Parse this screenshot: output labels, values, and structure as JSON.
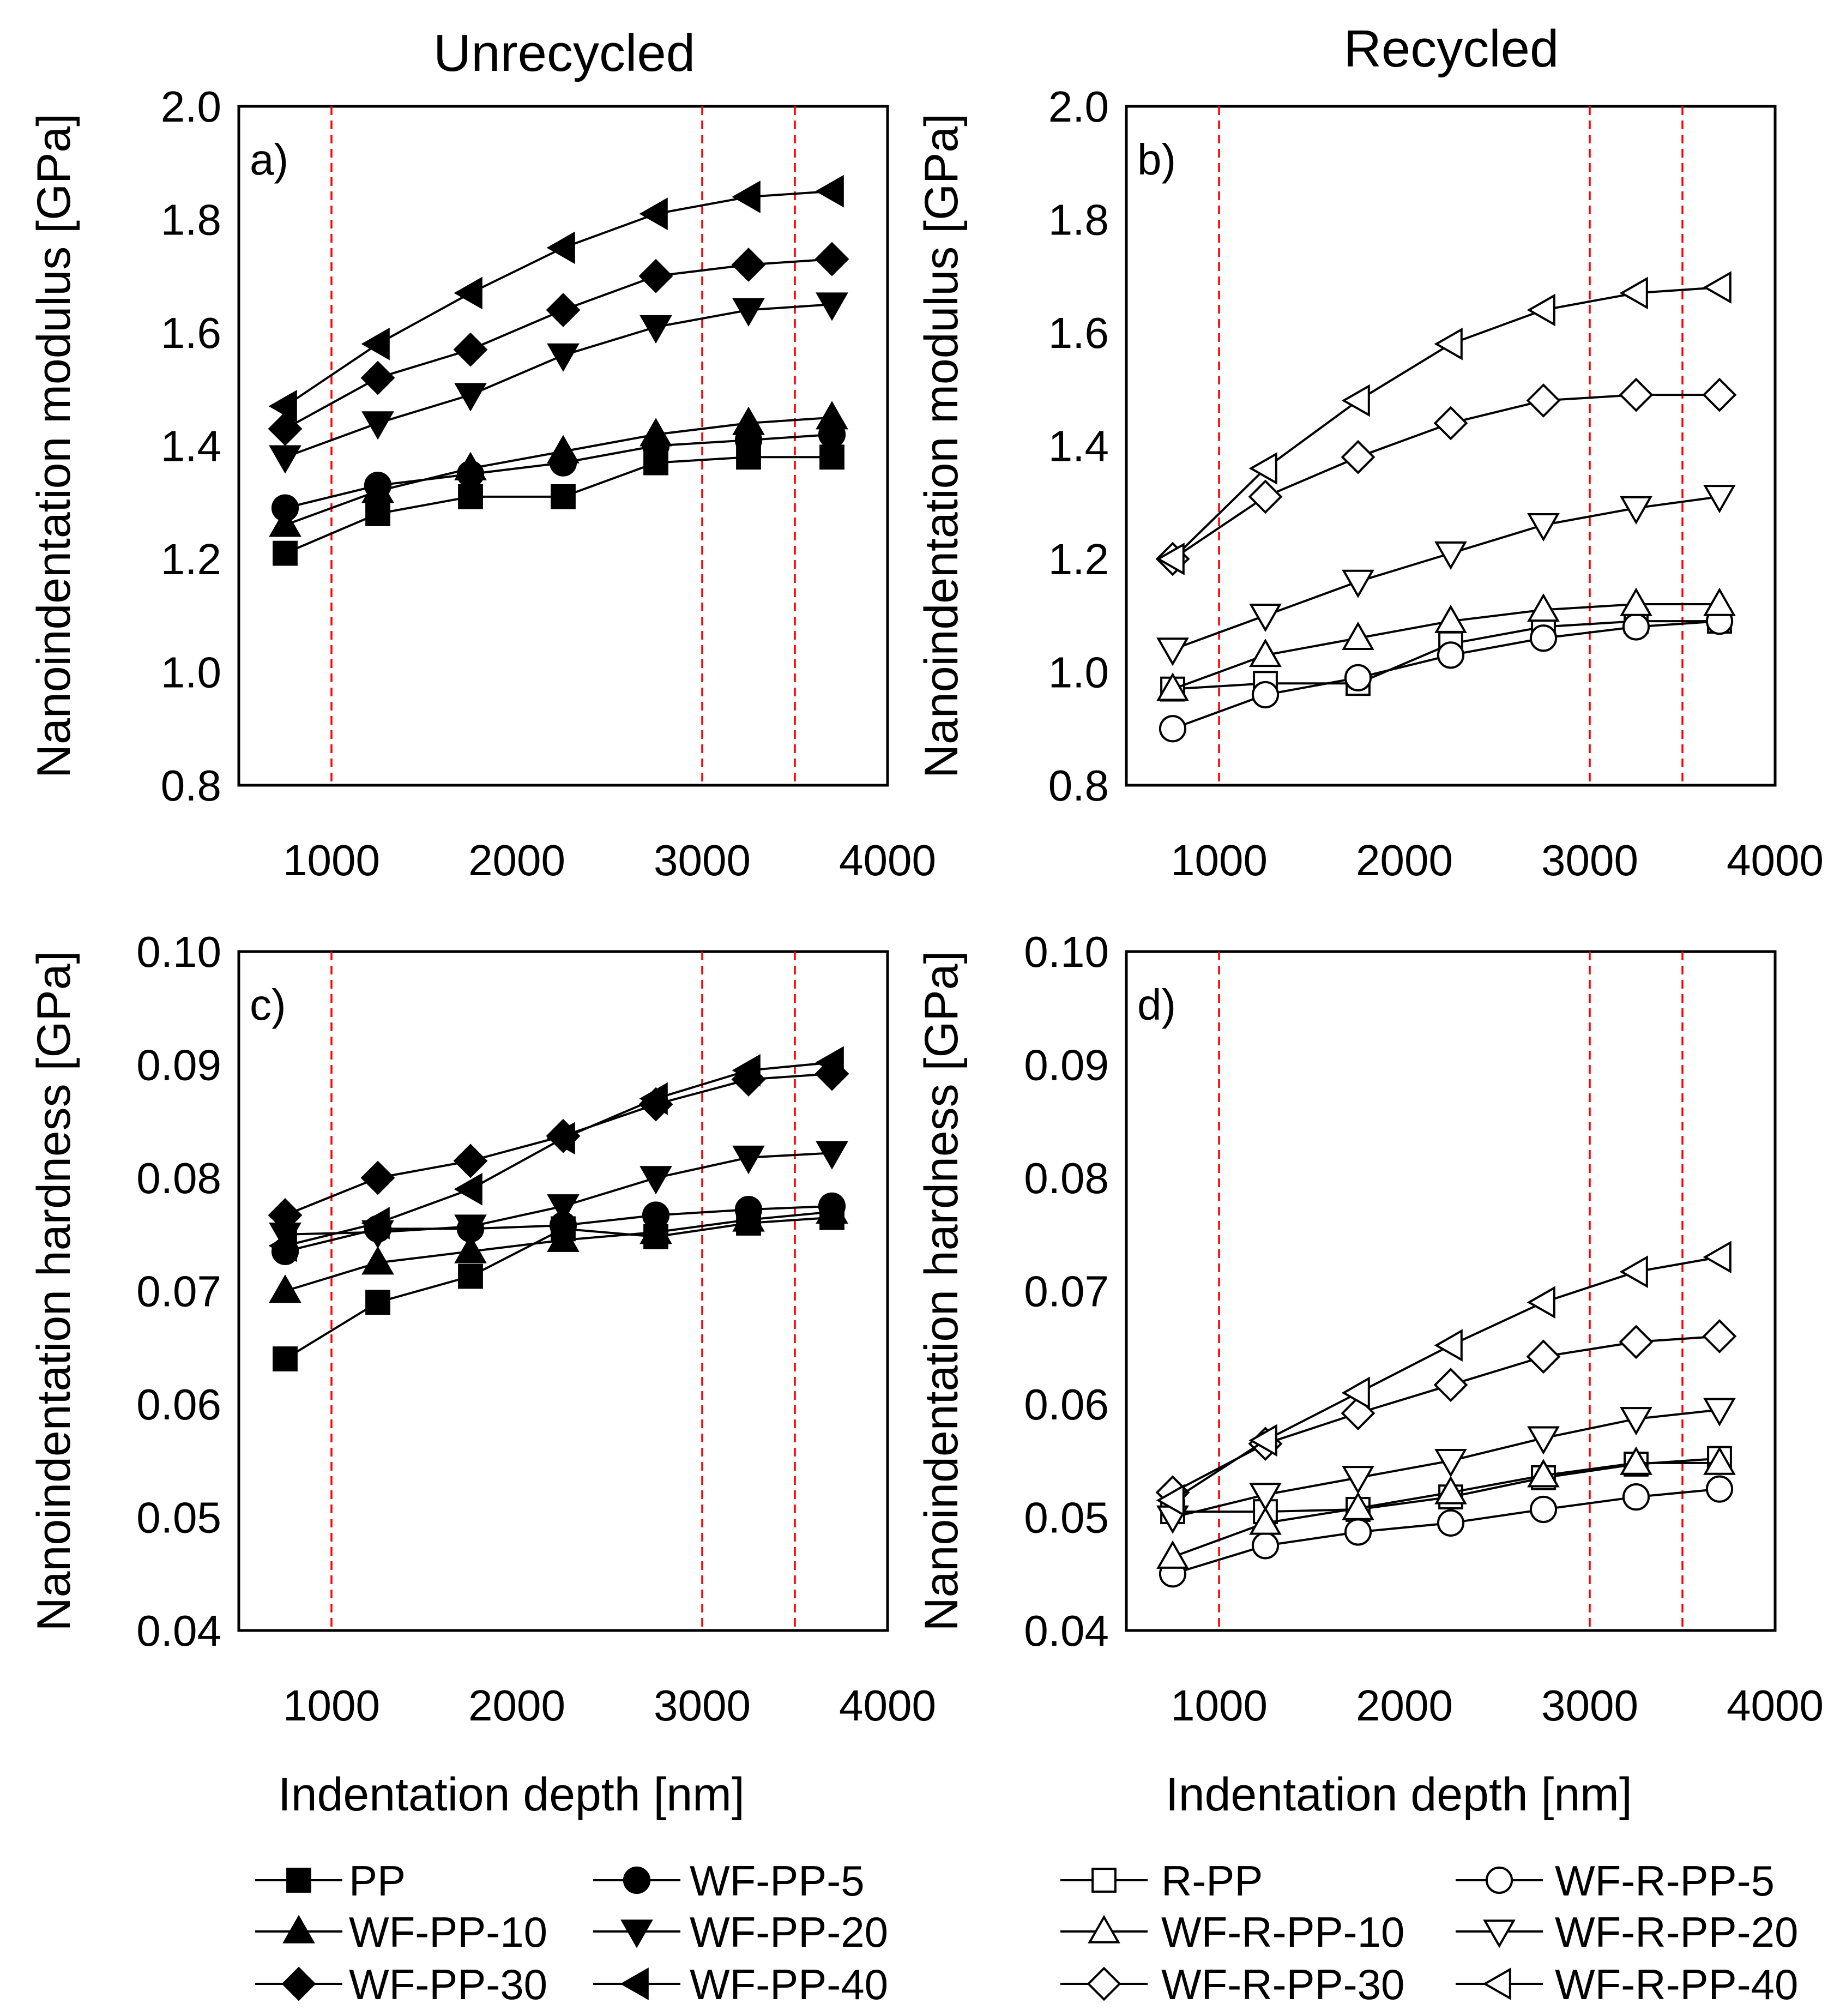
{
  "figure": {
    "column_titles": [
      "Unrecycled",
      "Recycled"
    ]
  },
  "chart_data": [
    {
      "type": "line",
      "panel_label": "a)",
      "title": "Unrecycled",
      "xlabel": "Indentation depth [nm]",
      "ylabel": "Nanoindentation modulus [GPa]",
      "xlim": [
        500,
        4000
      ],
      "ylim": [
        0.8,
        2.0
      ],
      "xticks": [
        1000,
        2000,
        3000,
        4000
      ],
      "xtick_labels": [
        "1000",
        "2000",
        "3000",
        "4000"
      ],
      "yticks": [
        0.8,
        1.0,
        1.2,
        1.4,
        1.6,
        1.8,
        2.0
      ],
      "ytick_labels": [
        "0.8",
        "1.0",
        "1.2",
        "1.4",
        "1.6",
        "1.8",
        "2.0"
      ],
      "reference_lines_x": [
        1000,
        3000,
        3500
      ],
      "reference_line_color": "#ff0000",
      "x": [
        750,
        1250,
        1750,
        2250,
        2750,
        3250,
        3700
      ],
      "series": [
        {
          "name": "PP",
          "marker": "square",
          "filled": true,
          "values": [
            1.21,
            1.28,
            1.31,
            1.31,
            1.37,
            1.38,
            1.38
          ]
        },
        {
          "name": "WF-PP-5",
          "marker": "circle",
          "filled": true,
          "values": [
            1.29,
            1.33,
            1.35,
            1.37,
            1.4,
            1.41,
            1.42
          ]
        },
        {
          "name": "WF-PP-10",
          "marker": "triangle-up",
          "filled": true,
          "values": [
            1.26,
            1.32,
            1.36,
            1.39,
            1.42,
            1.44,
            1.45
          ]
        },
        {
          "name": "WF-PP-20",
          "marker": "triangle-down",
          "filled": true,
          "values": [
            1.38,
            1.44,
            1.49,
            1.56,
            1.61,
            1.64,
            1.65
          ]
        },
        {
          "name": "WF-PP-30",
          "marker": "diamond",
          "filled": true,
          "values": [
            1.43,
            1.52,
            1.57,
            1.64,
            1.7,
            1.72,
            1.73
          ]
        },
        {
          "name": "WF-PP-40",
          "marker": "triangle-left",
          "filled": true,
          "values": [
            1.47,
            1.58,
            1.67,
            1.75,
            1.81,
            1.84,
            1.85
          ]
        }
      ]
    },
    {
      "type": "line",
      "panel_label": "b)",
      "title": "Recycled",
      "xlabel": "Indentation depth [nm]",
      "ylabel": "Nanoindentation modulus [GPa]",
      "xlim": [
        500,
        4000
      ],
      "ylim": [
        0.8,
        2.0
      ],
      "xticks": [
        1000,
        2000,
        3000,
        4000
      ],
      "xtick_labels": [
        "1000",
        "2000",
        "3000",
        "4000"
      ],
      "yticks": [
        0.8,
        1.0,
        1.2,
        1.4,
        1.6,
        1.8,
        2.0
      ],
      "ytick_labels": [
        "0.8",
        "1.0",
        "1.2",
        "1.4",
        "1.6",
        "1.8",
        "2.0"
      ],
      "reference_lines_x": [
        1000,
        3000,
        3500
      ],
      "reference_line_color": "#ff0000",
      "x": [
        750,
        1250,
        1750,
        2250,
        2750,
        3250,
        3700
      ],
      "series": [
        {
          "name": "R-PP",
          "marker": "square",
          "filled": false,
          "values": [
            0.97,
            0.98,
            0.98,
            1.05,
            1.08,
            1.09,
            1.09
          ]
        },
        {
          "name": "WF-R-PP-5",
          "marker": "circle",
          "filled": false,
          "values": [
            0.9,
            0.96,
            0.99,
            1.03,
            1.06,
            1.08,
            1.09
          ]
        },
        {
          "name": "WF-R-PP-10",
          "marker": "triangle-up",
          "filled": false,
          "values": [
            0.97,
            1.03,
            1.06,
            1.09,
            1.11,
            1.12,
            1.12
          ]
        },
        {
          "name": "WF-R-PP-20",
          "marker": "triangle-down",
          "filled": false,
          "values": [
            1.04,
            1.1,
            1.16,
            1.21,
            1.26,
            1.29,
            1.31
          ]
        },
        {
          "name": "WF-R-PP-30",
          "marker": "diamond",
          "filled": false,
          "values": [
            1.2,
            1.31,
            1.38,
            1.44,
            1.48,
            1.49,
            1.49
          ]
        },
        {
          "name": "WF-R-PP-40",
          "marker": "triangle-left",
          "filled": false,
          "values": [
            1.2,
            1.36,
            1.48,
            1.58,
            1.64,
            1.67,
            1.68
          ]
        }
      ]
    },
    {
      "type": "line",
      "panel_label": "c)",
      "title": "Unrecycled",
      "xlabel": "Indentation depth [nm]",
      "ylabel": "Nanoindentation hardness [GPa]",
      "xlim": [
        500,
        4000
      ],
      "ylim": [
        0.04,
        0.1
      ],
      "xticks": [
        1000,
        2000,
        3000,
        4000
      ],
      "xtick_labels": [
        "1000",
        "2000",
        "3000",
        "4000"
      ],
      "yticks": [
        0.04,
        0.05,
        0.06,
        0.07,
        0.08,
        0.09,
        0.1
      ],
      "ytick_labels": [
        "0.04",
        "0.05",
        "0.06",
        "0.07",
        "0.08",
        "0.09",
        "0.10"
      ],
      "reference_lines_x": [
        1000,
        3000,
        3500
      ],
      "reference_line_color": "#ff0000",
      "x": [
        750,
        1250,
        1750,
        2250,
        2750,
        3250,
        3700
      ],
      "series": [
        {
          "name": "PP",
          "marker": "square",
          "filled": true,
          "values": [
            0.064,
            0.069,
            0.0713,
            0.0755,
            0.0748,
            0.076,
            0.0765
          ]
        },
        {
          "name": "WF-PP-5",
          "marker": "circle",
          "filled": true,
          "values": [
            0.0735,
            0.0755,
            0.0755,
            0.0758,
            0.0767,
            0.0772,
            0.0775
          ]
        },
        {
          "name": "WF-PP-10",
          "marker": "triangle-up",
          "filled": true,
          "values": [
            0.07,
            0.0725,
            0.0735,
            0.0745,
            0.0752,
            0.0763,
            0.077
          ]
        },
        {
          "name": "WF-PP-20",
          "marker": "triangle-down",
          "filled": true,
          "values": [
            0.075,
            0.0752,
            0.0757,
            0.0775,
            0.08,
            0.0818,
            0.0822
          ]
        },
        {
          "name": "WF-PP-30",
          "marker": "diamond",
          "filled": true,
          "values": [
            0.0767,
            0.08,
            0.0815,
            0.0837,
            0.0865,
            0.0887,
            0.0892
          ]
        },
        {
          "name": "WF-PP-40",
          "marker": "triangle-left",
          "filled": true,
          "values": [
            0.074,
            0.076,
            0.079,
            0.0835,
            0.087,
            0.0895,
            0.0902
          ]
        }
      ]
    },
    {
      "type": "line",
      "panel_label": "d)",
      "title": "Recycled",
      "xlabel": "Indentation depth [nm]",
      "ylabel": "Nanoindentation hardness [GPa]",
      "xlim": [
        500,
        4000
      ],
      "ylim": [
        0.04,
        0.1
      ],
      "xticks": [
        1000,
        2000,
        3000,
        4000
      ],
      "xtick_labels": [
        "1000",
        "2000",
        "3000",
        "4000"
      ],
      "yticks": [
        0.04,
        0.05,
        0.06,
        0.07,
        0.08,
        0.09,
        0.1
      ],
      "ytick_labels": [
        "0.04",
        "0.05",
        "0.06",
        "0.07",
        "0.08",
        "0.09",
        "0.10"
      ],
      "reference_lines_x": [
        1000,
        3000,
        3500
      ],
      "reference_line_color": "#ff0000",
      "x": [
        750,
        1250,
        1750,
        2250,
        2750,
        3250,
        3700
      ],
      "series": [
        {
          "name": "R-PP",
          "marker": "square",
          "filled": false,
          "values": [
            0.0505,
            0.0505,
            0.0507,
            0.0518,
            0.0535,
            0.0547,
            0.0552
          ]
        },
        {
          "name": "WF-R-PP-5",
          "marker": "circle",
          "filled": false,
          "values": [
            0.045,
            0.0475,
            0.0487,
            0.0495,
            0.0507,
            0.0518,
            0.0525
          ]
        },
        {
          "name": "WF-R-PP-10",
          "marker": "triangle-up",
          "filled": false,
          "values": [
            0.0465,
            0.0495,
            0.0508,
            0.0522,
            0.0537,
            0.0548,
            0.0548
          ]
        },
        {
          "name": "WF-R-PP-20",
          "marker": "triangle-down",
          "filled": false,
          "values": [
            0.05,
            0.052,
            0.0535,
            0.055,
            0.057,
            0.0587,
            0.0595
          ]
        },
        {
          "name": "WF-R-PP-30",
          "marker": "diamond",
          "filled": false,
          "values": [
            0.0522,
            0.0565,
            0.0592,
            0.0617,
            0.0642,
            0.0655,
            0.066
          ]
        },
        {
          "name": "WF-R-PP-40",
          "marker": "triangle-left",
          "filled": false,
          "values": [
            0.0515,
            0.0568,
            0.061,
            0.0652,
            0.069,
            0.0717,
            0.073
          ]
        }
      ]
    }
  ],
  "legends": [
    {
      "name": "unrecycled",
      "items": [
        {
          "label": "PP",
          "marker": "square",
          "filled": true
        },
        {
          "label": "WF-PP-5",
          "marker": "circle",
          "filled": true
        },
        {
          "label": "WF-PP-10",
          "marker": "triangle-up",
          "filled": true
        },
        {
          "label": "WF-PP-20",
          "marker": "triangle-down",
          "filled": true
        },
        {
          "label": "WF-PP-30",
          "marker": "diamond",
          "filled": true
        },
        {
          "label": "WF-PP-40",
          "marker": "triangle-left",
          "filled": true
        }
      ]
    },
    {
      "name": "recycled",
      "items": [
        {
          "label": "R-PP",
          "marker": "square",
          "filled": false
        },
        {
          "label": "WF-R-PP-5",
          "marker": "circle",
          "filled": false
        },
        {
          "label": "WF-R-PP-10",
          "marker": "triangle-up",
          "filled": false
        },
        {
          "label": "WF-R-PP-20",
          "marker": "triangle-down",
          "filled": false
        },
        {
          "label": "WF-R-PP-30",
          "marker": "diamond",
          "filled": false
        },
        {
          "label": "WF-R-PP-40",
          "marker": "triangle-left",
          "filled": false
        }
      ]
    }
  ]
}
